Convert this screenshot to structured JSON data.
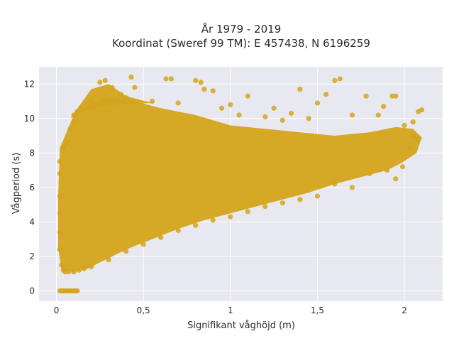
{
  "chart_data": {
    "type": "scatter",
    "title_line1": "År 1979 - 2019",
    "title_line2": "Koordinat (Sweref 99 TM): E 457438, N 6196259",
    "xlabel": "Signifikant våghöjd (m)",
    "ylabel": "Vågperiod (s)",
    "xlim": [
      -0.1,
      2.22
    ],
    "ylim": [
      -0.6,
      13.0
    ],
    "x_ticks": [
      0,
      0.5,
      1,
      1.5,
      2
    ],
    "x_tick_labels": [
      "0",
      "0,5",
      "1",
      "1,5",
      "2"
    ],
    "y_ticks": [
      0,
      2,
      4,
      6,
      8,
      10,
      12
    ],
    "y_tick_labels": [
      "0",
      "2",
      "4",
      "6",
      "8",
      "10",
      "12"
    ],
    "grid": true,
    "legend": "none",
    "colors": {
      "marker": "#d4a419",
      "plot_background": "#e8e8f0",
      "grid": "#ffffff"
    },
    "points": [
      [
        0.02,
        0
      ],
      [
        0.03,
        0
      ],
      [
        0.04,
        0
      ],
      [
        0.05,
        0
      ],
      [
        0.06,
        0
      ],
      [
        0.07,
        0
      ],
      [
        0.08,
        0
      ],
      [
        0.09,
        0
      ],
      [
        0.1,
        0
      ],
      [
        0.11,
        0
      ],
      [
        0.12,
        0
      ],
      [
        0.02,
        2.4
      ],
      [
        0.02,
        3.4
      ],
      [
        0.02,
        4.5
      ],
      [
        0.02,
        5.5
      ],
      [
        0.02,
        6.8
      ],
      [
        0.02,
        7.5
      ],
      [
        0.03,
        1.5
      ],
      [
        0.04,
        1.2
      ],
      [
        0.05,
        1.1
      ],
      [
        0.07,
        1.1
      ],
      [
        0.1,
        1.1
      ],
      [
        0.13,
        1.2
      ],
      [
        0.16,
        1.3
      ],
      [
        0.04,
        8.3
      ],
      [
        0.06,
        8.6
      ],
      [
        0.08,
        9.4
      ],
      [
        0.1,
        9.8
      ],
      [
        0.12,
        10.4
      ],
      [
        0.1,
        10.2
      ],
      [
        0.14,
        10.6
      ],
      [
        0.2,
        11.0
      ],
      [
        0.25,
        12.1
      ],
      [
        0.28,
        12.2
      ],
      [
        0.32,
        11.8
      ],
      [
        0.37,
        11.4
      ],
      [
        0.4,
        11.2
      ],
      [
        0.43,
        12.4
      ],
      [
        0.45,
        11.8
      ],
      [
        0.55,
        11.0
      ],
      [
        0.63,
        12.3
      ],
      [
        0.66,
        12.3
      ],
      [
        0.7,
        10.9
      ],
      [
        0.8,
        12.2
      ],
      [
        0.83,
        12.1
      ],
      [
        0.85,
        11.7
      ],
      [
        0.9,
        11.6
      ],
      [
        0.95,
        10.6
      ],
      [
        1.0,
        10.8
      ],
      [
        1.05,
        10.2
      ],
      [
        1.1,
        11.3
      ],
      [
        1.2,
        10.1
      ],
      [
        1.25,
        10.6
      ],
      [
        1.3,
        9.9
      ],
      [
        1.35,
        10.3
      ],
      [
        1.4,
        11.7
      ],
      [
        1.45,
        10.0
      ],
      [
        1.5,
        10.9
      ],
      [
        1.55,
        11.4
      ],
      [
        1.6,
        12.2
      ],
      [
        1.63,
        12.3
      ],
      [
        1.7,
        10.2
      ],
      [
        1.78,
        11.3
      ],
      [
        1.85,
        10.2
      ],
      [
        1.88,
        10.7
      ],
      [
        1.93,
        11.3
      ],
      [
        1.95,
        11.3
      ],
      [
        2.0,
        9.6
      ],
      [
        2.05,
        9.8
      ],
      [
        2.08,
        10.4
      ],
      [
        2.1,
        10.5
      ],
      [
        2.05,
        9.0
      ],
      [
        2.08,
        8.8
      ],
      [
        2.03,
        8.3
      ],
      [
        1.99,
        7.2
      ],
      [
        1.95,
        6.5
      ],
      [
        1.9,
        7.0
      ],
      [
        1.8,
        6.8
      ],
      [
        1.7,
        6.0
      ],
      [
        1.6,
        6.2
      ],
      [
        1.5,
        5.5
      ],
      [
        1.4,
        5.3
      ],
      [
        1.3,
        5.1
      ],
      [
        1.2,
        4.9
      ],
      [
        1.1,
        4.6
      ],
      [
        1.0,
        4.3
      ],
      [
        0.9,
        4.1
      ],
      [
        0.8,
        3.8
      ],
      [
        0.7,
        3.5
      ],
      [
        0.6,
        3.1
      ],
      [
        0.5,
        2.7
      ],
      [
        0.4,
        2.3
      ],
      [
        0.3,
        1.8
      ],
      [
        0.2,
        1.4
      ]
    ]
  }
}
